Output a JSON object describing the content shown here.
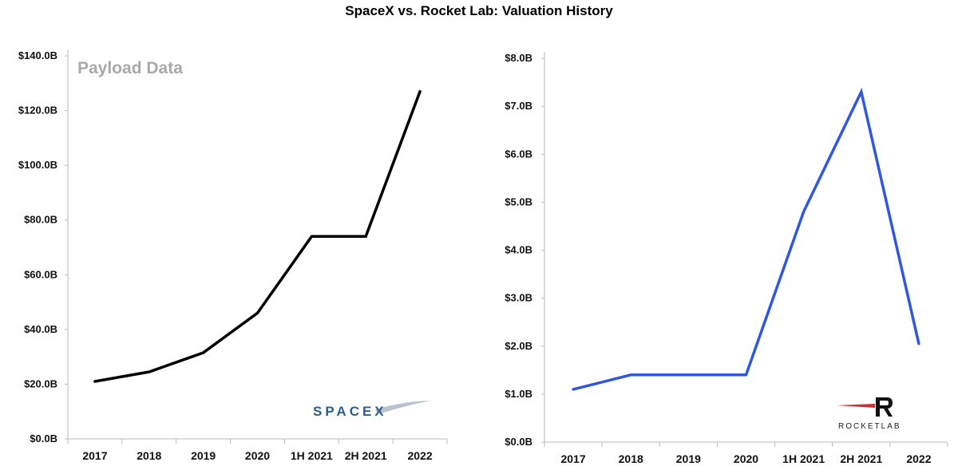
{
  "title": "SpaceX vs. Rocket Lab: Valuation History",
  "chart_data": [
    {
      "type": "line",
      "categories": [
        "2017",
        "2018",
        "2019",
        "2020",
        "1H 2021",
        "2H 2021",
        "2022"
      ],
      "series": [
        {
          "values": [
            21,
            24.5,
            31.5,
            46,
            74,
            74,
            127
          ],
          "color": "#000000"
        }
      ],
      "ylim": [
        0,
        140
      ],
      "yticks": [
        0,
        20,
        40,
        60,
        80,
        100,
        120,
        140
      ],
      "ytick_labels": [
        "$0.0B",
        "$20.0B",
        "$40.0B",
        "$60.0B",
        "$80.0B",
        "$100.0B",
        "$120.0B",
        "$140.0B"
      ],
      "watermark": "Payload Data",
      "logo_text": "SPACEX",
      "grid": false
    },
    {
      "type": "line",
      "categories": [
        "2017",
        "2018",
        "2019",
        "2020",
        "1H 2021",
        "2H 2021",
        "2022"
      ],
      "series": [
        {
          "values": [
            1.1,
            1.4,
            1.4,
            1.4,
            4.8,
            7.3,
            2.05
          ],
          "color": "#2f57e0"
        }
      ],
      "ylim": [
        0,
        8
      ],
      "yticks": [
        0,
        1,
        2,
        3,
        4,
        5,
        6,
        7,
        8
      ],
      "ytick_labels": [
        "$0.0B",
        "$1.0B",
        "$2.0B",
        "$3.0B",
        "$4.0B",
        "$5.0B",
        "$6.0B",
        "$7.0B",
        "$8.0B"
      ],
      "logo_text": "ROCKETLAB",
      "grid": false
    }
  ]
}
